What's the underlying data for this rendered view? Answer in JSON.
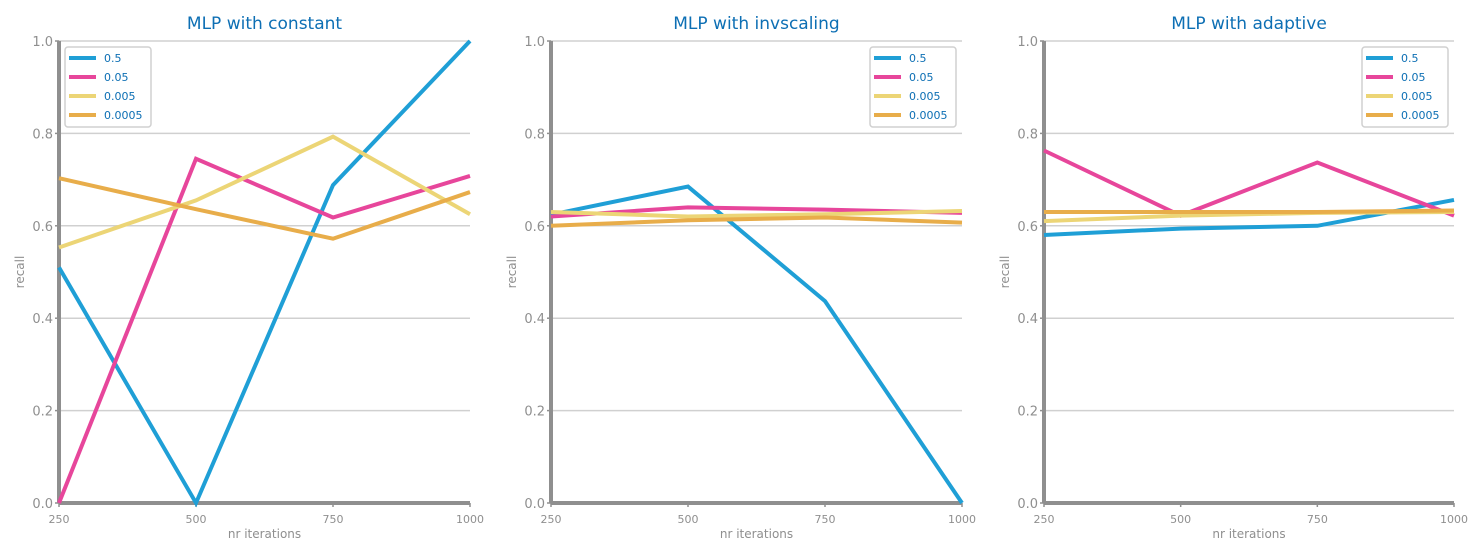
{
  "colors": {
    "series": [
      "#1f9fd6",
      "#e7469b",
      "#ecd576",
      "#e8ad4a"
    ],
    "title": "#0d6fb4",
    "axis": "#8f8f8f",
    "tick_label": "#8f8f8f",
    "grid": "#d0d0d0",
    "legend_text": "#0d6fb4",
    "legend_border": "#d0d0d0"
  },
  "chart_data": [
    {
      "type": "line",
      "title": "MLP with constant",
      "xlabel": "nr iterations",
      "ylabel": "recall",
      "x": [
        250,
        500,
        750,
        1000
      ],
      "x_ticks": [
        "250",
        "500",
        "750",
        "1000"
      ],
      "xlim": [
        250,
        1000
      ],
      "ylim": [
        0.0,
        1.0
      ],
      "y_ticks": [
        "0.0",
        "0.2",
        "0.4",
        "0.6",
        "0.8",
        "1.0"
      ],
      "grid": "horizontal",
      "legend_position": "top-left",
      "series": [
        {
          "name": "0.5",
          "values": [
            0.51,
            0.0,
            0.688,
            1.0
          ]
        },
        {
          "name": "0.05",
          "values": [
            0.0,
            0.745,
            0.618,
            0.708
          ]
        },
        {
          "name": "0.005",
          "values": [
            0.553,
            0.655,
            0.793,
            0.625
          ]
        },
        {
          "name": "0.0005",
          "values": [
            0.703,
            0.636,
            0.572,
            0.673
          ]
        }
      ]
    },
    {
      "type": "line",
      "title": "MLP with invscaling",
      "xlabel": "nr iterations",
      "ylabel": "recall",
      "x": [
        250,
        500,
        750,
        1000
      ],
      "x_ticks": [
        "250",
        "500",
        "750",
        "1000"
      ],
      "xlim": [
        250,
        1000
      ],
      "ylim": [
        0.0,
        1.0
      ],
      "y_ticks": [
        "0.0",
        "0.2",
        "0.4",
        "0.6",
        "0.8",
        "1.0"
      ],
      "grid": "horizontal",
      "legend_position": "top-right",
      "series": [
        {
          "name": "0.5",
          "values": [
            0.624,
            0.685,
            0.437,
            0.0
          ]
        },
        {
          "name": "0.05",
          "values": [
            0.62,
            0.64,
            0.635,
            0.628
          ]
        },
        {
          "name": "0.005",
          "values": [
            0.63,
            0.62,
            0.625,
            0.632
          ]
        },
        {
          "name": "0.0005",
          "values": [
            0.6,
            0.612,
            0.618,
            0.607
          ]
        }
      ]
    },
    {
      "type": "line",
      "title": "MLP with adaptive",
      "xlabel": "nr iterations",
      "ylabel": "recall",
      "x": [
        250,
        500,
        750,
        1000
      ],
      "x_ticks": [
        "250",
        "500",
        "750",
        "1000"
      ],
      "xlim": [
        250,
        1000
      ],
      "ylim": [
        0.0,
        1.0
      ],
      "y_ticks": [
        "0.0",
        "0.2",
        "0.4",
        "0.6",
        "0.8",
        "1.0"
      ],
      "grid": "horizontal",
      "legend_position": "top-right",
      "series": [
        {
          "name": "0.5",
          "values": [
            0.58,
            0.594,
            0.6,
            0.656
          ]
        },
        {
          "name": "0.05",
          "values": [
            0.763,
            0.622,
            0.737,
            0.622
          ]
        },
        {
          "name": "0.005",
          "values": [
            0.61,
            0.622,
            0.628,
            0.63
          ]
        },
        {
          "name": "0.0005",
          "values": [
            0.63,
            0.63,
            0.63,
            0.633
          ]
        }
      ]
    }
  ]
}
